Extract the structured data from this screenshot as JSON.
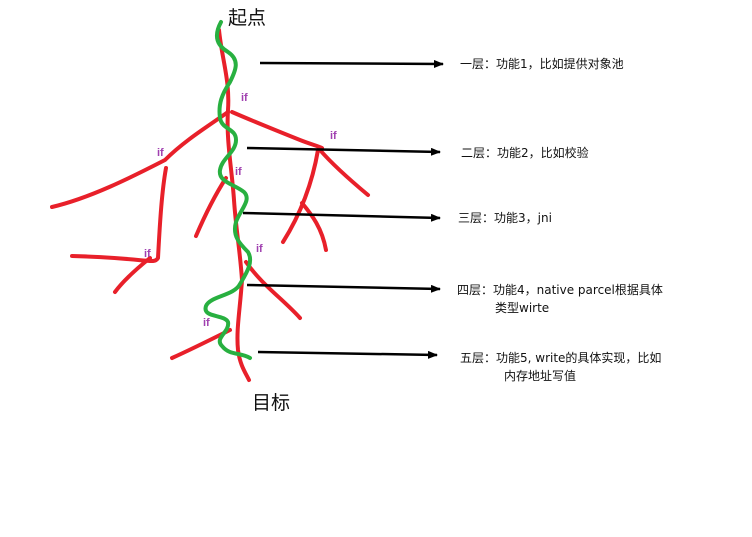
{
  "start_label": "起点",
  "end_label": "目标",
  "if_label": "if",
  "colors": {
    "branch": "#e8202a",
    "path": "#28b040",
    "arrow": "#000000",
    "if_text": "#a040b0"
  },
  "layers": [
    {
      "line1": "一层：功能1，比如提供对象池",
      "line2": ""
    },
    {
      "line1": "二层：功能2，比如校验",
      "line2": ""
    },
    {
      "line1": "三层：功能3，jni",
      "line2": ""
    },
    {
      "line1": "四层：功能4，native parcel根据具体",
      "line2": "类型wirte"
    },
    {
      "line1": "五层：功能5, write的具体实现，比如",
      "line2": "内存地址写值"
    }
  ]
}
